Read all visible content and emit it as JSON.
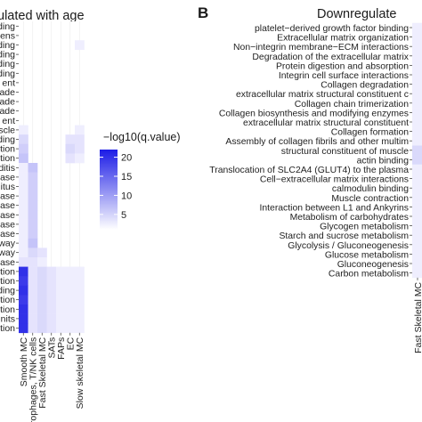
{
  "chart_data": [
    {
      "type": "heatmap",
      "panel": "A",
      "title": "ulated with age",
      "columns": [
        "Smooth MC",
        "Macrophages, T/NK cells",
        "Fast Skeletal MC",
        "SATs",
        "FAPs",
        "EC",
        "Slow skeletal MC"
      ],
      "row_labels_visible": [
        "ding",
        "ens",
        "ding",
        "ding",
        "ding",
        "ding",
        "ent",
        "ade",
        "ade",
        "ade",
        "ent",
        "scle",
        "ding",
        "tion",
        "tion",
        "ditis",
        "ase",
        "itus",
        "ase",
        "ase",
        "ase",
        "ase",
        "ase",
        "way",
        "way",
        "ase",
        "tion",
        "tion",
        "ding",
        "tion",
        "tion",
        "nits",
        "tion"
      ],
      "values": [
        [
          0,
          0,
          0,
          0,
          0,
          0,
          0
        ],
        [
          0,
          0,
          0,
          0,
          0,
          0,
          0
        ],
        [
          0,
          0,
          0,
          0,
          0,
          0,
          2
        ],
        [
          0,
          0,
          0,
          0,
          0,
          0,
          0
        ],
        [
          0,
          0,
          0,
          0,
          0,
          0,
          0
        ],
        [
          0,
          0,
          0,
          0,
          0,
          0,
          0
        ],
        [
          0,
          0,
          0,
          0,
          0,
          0,
          0
        ],
        [
          0,
          0,
          0,
          0,
          0,
          0,
          0
        ],
        [
          0,
          0,
          0,
          0,
          0,
          0,
          0
        ],
        [
          0,
          0,
          0,
          0,
          0,
          0,
          0
        ],
        [
          0,
          0,
          0,
          0,
          0,
          0,
          0
        ],
        [
          2,
          0,
          0,
          0,
          0,
          0,
          2
        ],
        [
          4,
          0,
          0,
          0,
          0,
          3,
          3
        ],
        [
          5,
          0,
          0,
          0,
          0,
          4,
          3
        ],
        [
          6,
          0,
          0,
          0,
          0,
          3,
          2
        ],
        [
          2,
          6,
          0,
          0,
          0,
          0,
          0
        ],
        [
          2,
          5,
          0,
          0,
          0,
          0,
          0
        ],
        [
          2,
          5,
          0,
          0,
          0,
          0,
          0
        ],
        [
          2,
          5,
          0,
          0,
          0,
          0,
          0
        ],
        [
          2,
          5,
          0,
          0,
          0,
          0,
          0
        ],
        [
          2,
          5,
          0,
          0,
          0,
          0,
          0
        ],
        [
          2,
          5,
          0,
          0,
          0,
          0,
          0
        ],
        [
          2,
          5,
          0,
          0,
          0,
          0,
          0
        ],
        [
          2,
          6,
          0,
          0,
          0,
          0,
          0
        ],
        [
          2,
          4,
          3,
          0,
          0,
          0,
          0
        ],
        [
          3,
          3,
          2,
          0,
          0,
          0,
          0
        ],
        [
          20,
          3,
          4,
          3,
          2,
          2,
          2
        ],
        [
          19,
          3,
          4,
          3,
          2,
          2,
          2
        ],
        [
          20,
          3,
          4,
          3,
          2,
          2,
          2
        ],
        [
          19,
          3,
          4,
          3,
          2,
          2,
          2
        ],
        [
          20,
          3,
          4,
          3,
          2,
          2,
          2
        ],
        [
          20,
          3,
          4,
          3,
          2,
          2,
          2
        ],
        [
          20,
          3,
          4,
          3,
          2,
          2,
          2
        ]
      ],
      "colorbar": {
        "label": "−log10(q.value)",
        "ticks": [
          20,
          15,
          10,
          5
        ],
        "range": [
          1,
          22
        ],
        "low_color": "#ffffff",
        "high_color": "#1c1ce6"
      }
    },
    {
      "type": "heatmap",
      "panel": "B",
      "title": "Downregulate",
      "columns": [
        "Fast Skeletal MC"
      ],
      "rows": [
        "platelet−derived growth factor binding",
        "Extracellular matrix organization",
        "Non−integrin membrane−ECM interactions",
        "Degradation of the extracellular matrix",
        "Protein digestion and absorption",
        "Integrin cell surface interactions",
        "Collagen degradation",
        "extracellular matrix structural constituent c",
        "Collagen chain trimerization",
        "Collagen biosynthesis and modifying enzymes",
        "extracellular matrix structural constituent",
        "Collagen formation",
        "Assembly of collagen fibrils and other multim",
        "structural constituent of muscle",
        "actin binding",
        "Translocation of SLC2A4 (GLUT4) to the plasma",
        "Cell−extracellular matrix interactions",
        "calmodulin binding",
        "Muscle contraction",
        "Interaction between L1 and Ankyrins",
        "Metabolism of carbohydrates",
        "Glycogen metabolism",
        "Starch and sucrose metabolism",
        "Glycolysis / Gluconeogenesis",
        "Glucose metabolism",
        "Gluconeogenesis",
        "Carbon metabolism"
      ],
      "values": [
        2,
        2,
        2,
        2,
        2,
        2,
        2,
        2,
        2,
        2,
        2,
        2,
        2,
        4,
        4,
        2,
        2,
        2,
        2,
        2,
        2,
        2,
        2,
        2,
        2,
        2,
        2
      ]
    }
  ],
  "panel_label_b": "B"
}
